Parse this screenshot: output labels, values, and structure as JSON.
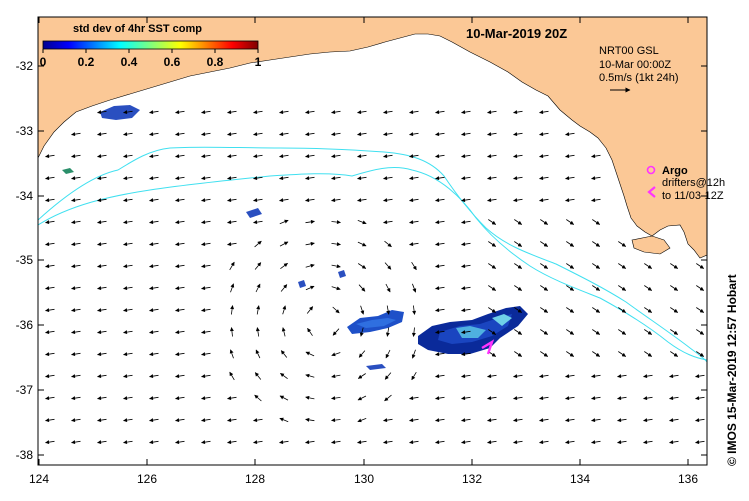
{
  "map": {
    "date_title": "10-Mar-2019 20Z",
    "colorbar": {
      "title": "std dev of 4hr SST comp",
      "ticks": [
        "0",
        "0.2",
        "0.4",
        "0.6",
        "0.8",
        "1"
      ]
    },
    "current_info": {
      "line1": "NRT00 GSL",
      "line2": "10-Mar 00:00Z",
      "line3": "0.5m/s (1kt 24h)"
    },
    "argo_label": "Argo",
    "drifters_line1": "drifters@12h",
    "drifters_line2": "to 11/03-12Z",
    "side_credit": "© IMOS 15-Mar-2019 12:57 Hobart",
    "x_ticks": [
      "124",
      "126",
      "128",
      "130",
      "132",
      "134",
      "136"
    ],
    "y_ticks": [
      "-32",
      "-33",
      "-34",
      "-35",
      "-36",
      "-37",
      "-38"
    ],
    "colors": {
      "land": "#fbc896",
      "contour": "#40e0f0",
      "argo": "#ff33ff",
      "frame": "#000000"
    }
  }
}
